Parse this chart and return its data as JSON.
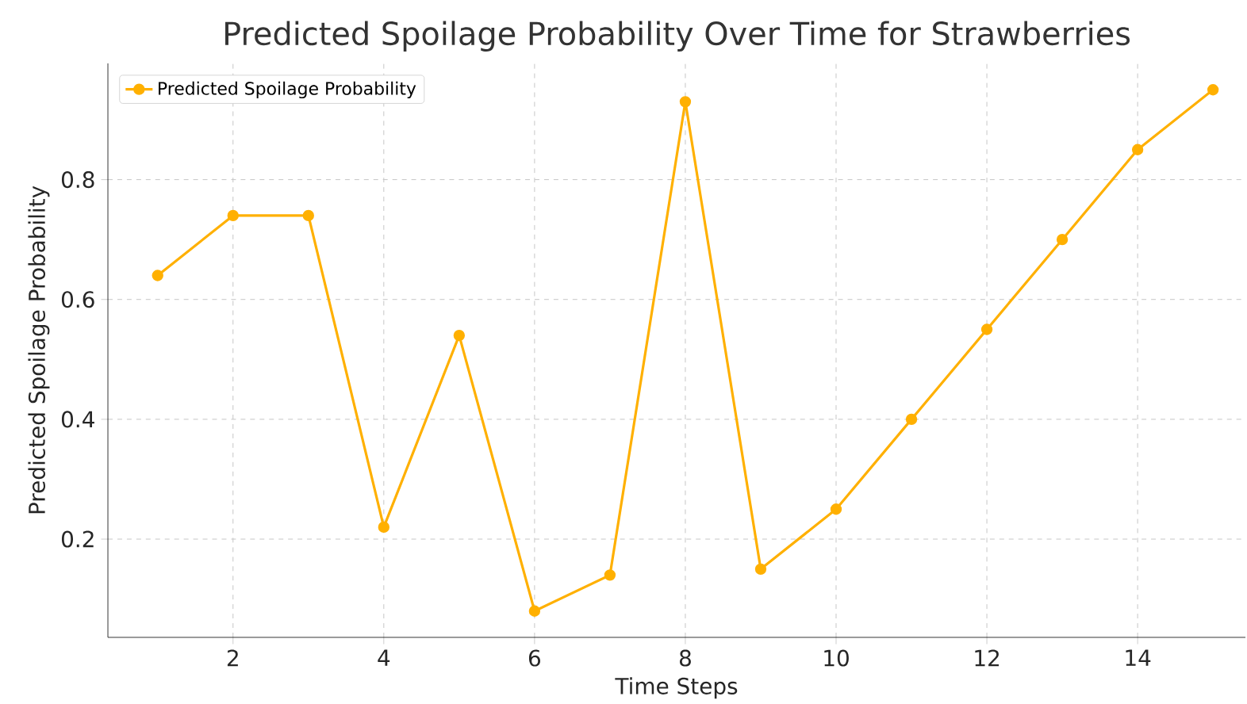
{
  "chart_data": {
    "type": "line",
    "title": "Predicted Spoilage Probability Over Time for Strawberries",
    "xlabel": "Time Steps",
    "ylabel": "Predicted Spoilage Probability",
    "x": [
      1,
      2,
      3,
      4,
      5,
      6,
      7,
      8,
      9,
      10,
      11,
      12,
      13,
      14,
      15
    ],
    "series": [
      {
        "name": "Predicted Spoilage Probability",
        "color": "#ffb000",
        "values": [
          0.64,
          0.74,
          0.74,
          0.22,
          0.54,
          0.08,
          0.14,
          0.93,
          0.15,
          0.25,
          0.4,
          0.55,
          0.7,
          0.85,
          0.95
        ]
      }
    ],
    "xlim": [
      0.34,
      15.43
    ],
    "ylim": [
      0.036,
      0.994
    ],
    "xticks": [
      2,
      4,
      6,
      8,
      10,
      12,
      14
    ],
    "yticks": [
      0.2,
      0.4,
      0.6,
      0.8
    ],
    "grid": true,
    "legend": "top left",
    "marker": "circle",
    "line_style": "solid"
  }
}
